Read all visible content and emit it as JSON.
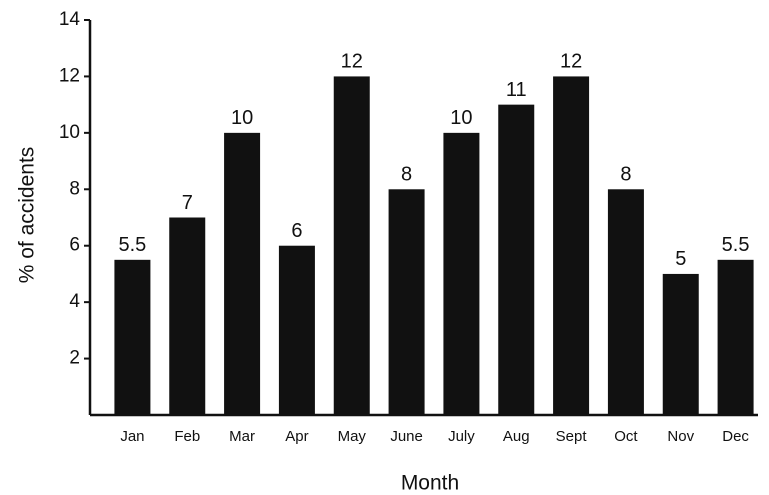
{
  "chart_data": {
    "type": "bar",
    "categories": [
      "Jan",
      "Feb",
      "Mar",
      "Apr",
      "May",
      "June",
      "July",
      "Aug",
      "Sept",
      "Oct",
      "Nov",
      "Dec"
    ],
    "values": [
      5.5,
      7,
      10,
      6,
      12,
      8,
      10,
      11,
      12,
      8,
      5,
      5.5
    ],
    "color": "#111111",
    "x_label": "Month",
    "y_label": "% of accidents",
    "ylim": [
      0,
      14
    ],
    "yticks": [
      2,
      4,
      6,
      8,
      10,
      12,
      14
    ],
    "grid": false
  }
}
